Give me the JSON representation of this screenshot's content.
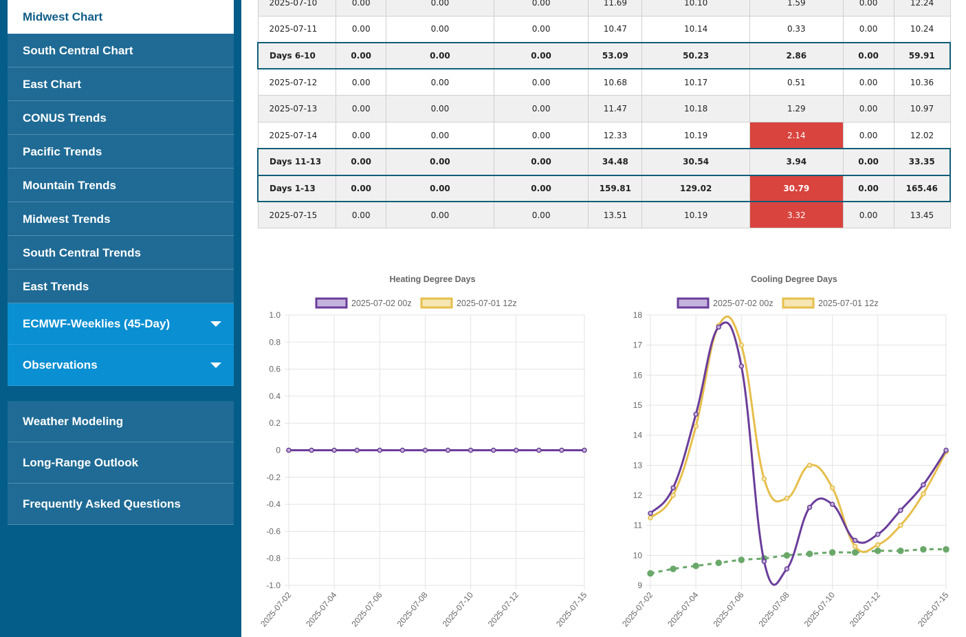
{
  "sidebar": {
    "items": [
      {
        "label": "Midwest Chart",
        "active": true
      },
      {
        "label": "South Central Chart"
      },
      {
        "label": "East Chart"
      },
      {
        "label": "CONUS Trends"
      },
      {
        "label": "Pacific Trends"
      },
      {
        "label": "Mountain Trends"
      },
      {
        "label": "Midwest Trends"
      },
      {
        "label": "South Central Trends"
      },
      {
        "label": "East Trends"
      }
    ],
    "dropdowns": [
      {
        "label": "ECMWF-Weeklies (45-Day)",
        "icon": "chevron-down-icon"
      },
      {
        "label": "Observations",
        "icon": "chevron-down-icon"
      }
    ],
    "links": [
      {
        "label": "Weather Modeling"
      },
      {
        "label": "Long-Range Outlook"
      },
      {
        "label": "Frequently Asked Questions"
      }
    ]
  },
  "table": {
    "rows": [
      {
        "type": "shade",
        "cells": [
          "2025-07-10",
          "0.00",
          "0.00",
          "0.00",
          "11.69",
          "10.10",
          "1.59",
          "0.00",
          "12.24"
        ]
      },
      {
        "type": "plain",
        "cells": [
          "2025-07-11",
          "0.00",
          "0.00",
          "0.00",
          "10.47",
          "10.14",
          "0.33",
          "0.00",
          "10.24"
        ]
      },
      {
        "type": "sum",
        "cells": [
          "Days 6-10",
          "0.00",
          "0.00",
          "0.00",
          "53.09",
          "50.23",
          "2.86",
          "0.00",
          "59.91"
        ]
      },
      {
        "type": "plain",
        "cells": [
          "2025-07-12",
          "0.00",
          "0.00",
          "0.00",
          "10.68",
          "10.17",
          "0.51",
          "0.00",
          "10.36"
        ]
      },
      {
        "type": "shade",
        "cells": [
          "2025-07-13",
          "0.00",
          "0.00",
          "0.00",
          "11.47",
          "10.18",
          "1.29",
          "0.00",
          "10.97"
        ]
      },
      {
        "type": "plain",
        "cells": [
          "2025-07-14",
          "0.00",
          "0.00",
          "0.00",
          "12.33",
          "10.19",
          "2.14",
          "0.00",
          "12.02"
        ],
        "hot": 6
      },
      {
        "type": "sum",
        "cells": [
          "Days 11-13",
          "0.00",
          "0.00",
          "0.00",
          "34.48",
          "30.54",
          "3.94",
          "0.00",
          "33.35"
        ]
      },
      {
        "type": "sum",
        "cells": [
          "Days 1-13",
          "0.00",
          "0.00",
          "0.00",
          "159.81",
          "129.02",
          "30.79",
          "0.00",
          "165.46"
        ],
        "hot": 6
      },
      {
        "type": "shade",
        "cells": [
          "2025-07-15",
          "0.00",
          "0.00",
          "0.00",
          "13.51",
          "10.19",
          "3.32",
          "0.00",
          "13.45"
        ],
        "hot": 6
      }
    ],
    "colors": {
      "hot": "#d9443e",
      "sum_border": "#0f5d78"
    }
  },
  "chart_data": [
    {
      "type": "line",
      "title": "Heating Degree Days",
      "x": [
        "2025-07-02",
        "2025-07-03",
        "2025-07-04",
        "2025-07-05",
        "2025-07-06",
        "2025-07-07",
        "2025-07-08",
        "2025-07-09",
        "2025-07-10",
        "2025-07-11",
        "2025-07-12",
        "2025-07-13",
        "2025-07-14",
        "2025-07-15"
      ],
      "x_tick_labels": [
        "2025-07-02",
        "2025-07-04",
        "2025-07-06",
        "2025-07-08",
        "2025-07-10",
        "2025-07-12",
        "2025-07-15"
      ],
      "ylim": [
        -1.0,
        1.0
      ],
      "y_ticks": [
        "1.0",
        "0.8",
        "0.6",
        "0.4",
        "0.2",
        "0",
        "-0.2",
        "-0.4",
        "-0.6",
        "-0.8",
        "-1.0"
      ],
      "legend_position": "top",
      "grid": true,
      "series": [
        {
          "name": "2025-07-02 00z",
          "color": "#6a3d9a",
          "fill": "#c4b3dc",
          "values": [
            0,
            0,
            0,
            0,
            0,
            0,
            0,
            0,
            0,
            0,
            0,
            0,
            0,
            0
          ]
        },
        {
          "name": "2025-07-01 12z",
          "color": "#e6be4a",
          "fill": "#f5e6b3",
          "values": [
            0,
            0,
            0,
            0,
            0,
            0,
            0,
            0,
            0,
            0,
            0,
            0,
            0,
            0
          ]
        }
      ]
    },
    {
      "type": "line",
      "title": "Cooling Degree Days",
      "x": [
        "2025-07-02",
        "2025-07-03",
        "2025-07-04",
        "2025-07-05",
        "2025-07-06",
        "2025-07-07",
        "2025-07-08",
        "2025-07-09",
        "2025-07-10",
        "2025-07-11",
        "2025-07-12",
        "2025-07-13",
        "2025-07-14",
        "2025-07-15"
      ],
      "x_tick_labels": [
        "2025-07-02",
        "2025-07-04",
        "2025-07-06",
        "2025-07-08",
        "2025-07-10",
        "2025-07-12",
        "2025-07-15"
      ],
      "ylim": [
        9,
        18
      ],
      "y_ticks": [
        "18",
        "17",
        "16",
        "15",
        "14",
        "13",
        "12",
        "11",
        "10",
        "9"
      ],
      "legend_position": "top",
      "grid": true,
      "series": [
        {
          "name": "2025-07-02 00z",
          "color": "#6a3d9a",
          "fill": "#c4b3dc",
          "values": [
            11.4,
            12.25,
            14.7,
            17.6,
            16.3,
            9.8,
            9.55,
            11.6,
            11.7,
            10.5,
            10.7,
            11.5,
            12.35,
            13.5
          ]
        },
        {
          "name": "2025-07-01 12z",
          "color": "#e6be4a",
          "fill": "#f5e6b3",
          "values": [
            11.25,
            12.0,
            14.3,
            17.65,
            17.0,
            12.55,
            11.9,
            13.0,
            12.25,
            10.3,
            10.35,
            11.0,
            12.05,
            13.45
          ]
        },
        {
          "color": "#6aa86a",
          "dashed": true,
          "values": [
            9.4,
            9.55,
            9.65,
            9.75,
            9.85,
            9.9,
            10.0,
            10.05,
            10.1,
            10.1,
            10.15,
            10.15,
            10.2,
            10.2
          ]
        }
      ]
    }
  ]
}
